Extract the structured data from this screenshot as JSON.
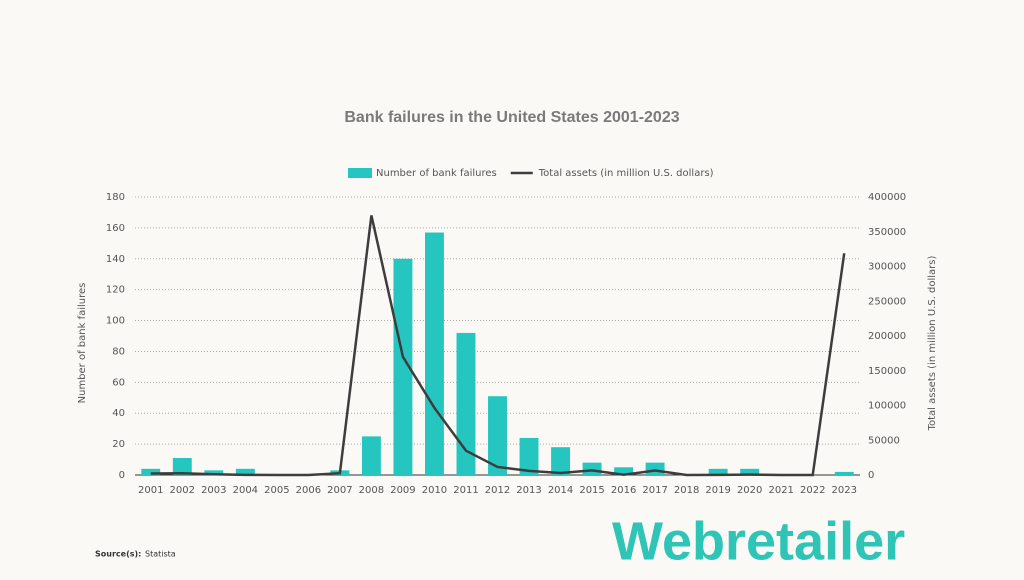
{
  "chart_data": {
    "type": "bar",
    "title": "Bank failures in the United States 2001-2023",
    "categories": [
      "2001",
      "2002",
      "2003",
      "2004",
      "2005",
      "2006",
      "2007",
      "2008",
      "2009",
      "2010",
      "2011",
      "2012",
      "2013",
      "2014",
      "2015",
      "2016",
      "2017",
      "2018",
      "2019",
      "2020",
      "2021",
      "2022",
      "2023"
    ],
    "series": [
      {
        "name": "Number of bank failures",
        "color": "#26c6c0",
        "type": "bar",
        "values": [
          4,
          11,
          3,
          4,
          0,
          0,
          3,
          25,
          140,
          157,
          92,
          51,
          24,
          18,
          8,
          5,
          8,
          0,
          4,
          4,
          0,
          0,
          2
        ]
      },
      {
        "name": "Total assets (in million U.S. dollars)",
        "color": "#3d3d3d",
        "type": "line",
        "axis": "y2",
        "values": [
          2200,
          2500,
          1000,
          200,
          0,
          0,
          2600,
          373600,
          170000,
          96500,
          35000,
          11600,
          6000,
          2900,
          6700,
          300,
          6500,
          0,
          200,
          500,
          0,
          0,
          319000
        ]
      }
    ],
    "ylabel": "Number of bank failures",
    "y2label": "Total assets (in million U.S. dollars)",
    "ylim": [
      0,
      180
    ],
    "yticks": [
      0,
      20,
      40,
      60,
      80,
      100,
      120,
      140,
      160,
      180
    ],
    "y2lim": [
      0,
      400000
    ],
    "y2ticks": [
      0,
      50000,
      100000,
      150000,
      200000,
      250000,
      300000,
      350000,
      400000
    ],
    "grid": true,
    "legend": "top"
  },
  "footer": {
    "source_label": "Source(s):",
    "source": "Statista",
    "logo": "Webretailer"
  }
}
